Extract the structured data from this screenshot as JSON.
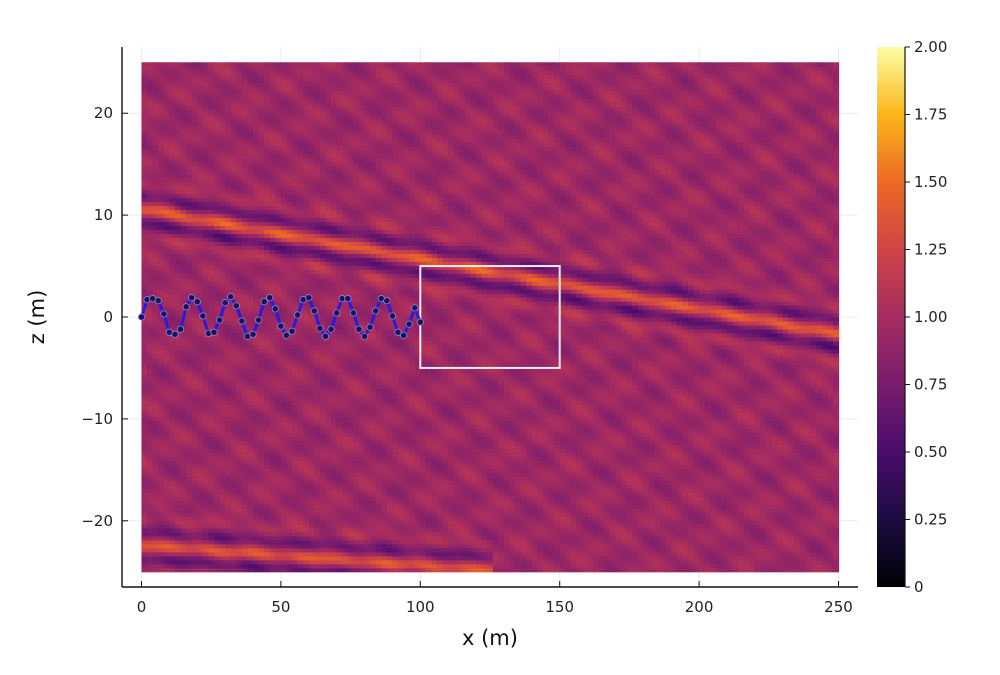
{
  "chart_data": {
    "type": "heatmap",
    "title": "",
    "xlabel": "x (m)",
    "ylabel": "z (m)",
    "xlim": [
      -7,
      257
    ],
    "ylim": [
      -26.5,
      26.5
    ],
    "data_extent": {
      "x": [
        0,
        250
      ],
      "z": [
        -25,
        25
      ]
    },
    "x_ticks": [
      0,
      50,
      100,
      150,
      200,
      250
    ],
    "x_tick_labels": [
      "0",
      "50",
      "100",
      "150",
      "200",
      "250"
    ],
    "y_ticks": [
      -20,
      -10,
      0,
      10,
      20
    ],
    "y_tick_labels": [
      "−20",
      "−10",
      "0",
      "10",
      "20"
    ],
    "grid": true,
    "colormap": "inferno",
    "colorbar": {
      "range": [
        0,
        2
      ],
      "ticks": [
        0,
        0.25,
        0.5,
        0.75,
        1.0,
        1.25,
        1.5,
        1.75,
        2.0
      ],
      "tick_labels": [
        "0",
        "0.25",
        "0.50",
        "0.75",
        "1.00",
        "1.25",
        "1.50",
        "1.75",
        "2.00"
      ]
    },
    "background_level": 0.95,
    "wave_bands": [
      {
        "name": "",
        "x_range": [
          0,
          250
        ],
        "z_start": 10.5,
        "z_end": -1.8,
        "amplitude": 0.45
      },
      {
        "name": "",
        "x_range": [
          0,
          120
        ],
        "z_start": -22.5,
        "z_end": -27.5,
        "amplitude": 0.4
      }
    ],
    "rectangle": {
      "x": [
        100,
        150
      ],
      "z": [
        -5,
        5
      ],
      "color": "#f2eded"
    },
    "wave_overlay": {
      "color": "#2a1bd6",
      "marker_color": "#1c1450",
      "points": [
        [
          0,
          0
        ],
        [
          2,
          1.7
        ],
        [
          4,
          1.8
        ],
        [
          6,
          1.6
        ],
        [
          8,
          0.3
        ],
        [
          10,
          -1.5
        ],
        [
          12,
          -1.7
        ],
        [
          14,
          -1.2
        ],
        [
          16,
          1.0
        ],
        [
          18,
          1.9
        ],
        [
          20,
          1.5
        ],
        [
          22,
          0.1
        ],
        [
          24,
          -1.6
        ],
        [
          26,
          -1.5
        ],
        [
          28,
          -0.3
        ],
        [
          30,
          1.4
        ],
        [
          32,
          2.0
        ],
        [
          34,
          1.1
        ],
        [
          36,
          -0.4
        ],
        [
          38,
          -1.9
        ],
        [
          40,
          -1.7
        ],
        [
          42,
          -0.3
        ],
        [
          44,
          1.5
        ],
        [
          46,
          1.9
        ],
        [
          48,
          0.8
        ],
        [
          50,
          -0.9
        ],
        [
          52,
          -1.8
        ],
        [
          54,
          -1.4
        ],
        [
          56,
          0.2
        ],
        [
          58,
          1.7
        ],
        [
          60,
          1.9
        ],
        [
          62,
          0.6
        ],
        [
          64,
          -1.1
        ],
        [
          66,
          -1.9
        ],
        [
          68,
          -1.2
        ],
        [
          70,
          0.4
        ],
        [
          72,
          1.8
        ],
        [
          74,
          1.8
        ],
        [
          76,
          0.4
        ],
        [
          78,
          -1.2
        ],
        [
          80,
          -1.9
        ],
        [
          82,
          -1.0
        ],
        [
          84,
          0.6
        ],
        [
          86,
          1.8
        ],
        [
          88,
          1.6
        ],
        [
          90,
          0.1
        ],
        [
          92,
          -1.5
        ],
        [
          94,
          -1.8
        ],
        [
          96,
          -0.7
        ],
        [
          98,
          0.9
        ],
        [
          100,
          -0.5
        ]
      ]
    }
  }
}
